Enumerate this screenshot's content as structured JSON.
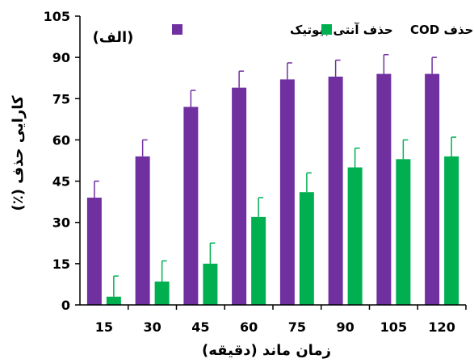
{
  "chart_data": {
    "type": "bar",
    "panel_label": "(الف)",
    "xlabel": "زمان ماند (دقیقه)",
    "ylabel": "کارایی حذف (٪)",
    "categories": [
      "15",
      "30",
      "45",
      "60",
      "75",
      "90",
      "105",
      "120"
    ],
    "ylim": [
      0,
      105
    ],
    "yticks": [
      0,
      15,
      30,
      45,
      60,
      75,
      90,
      105
    ],
    "grid": false,
    "legend_position": "top",
    "series": [
      {
        "name": "حذف آنتی بیوتیک",
        "color": "#7030a0",
        "values": [
          39,
          54,
          72,
          79,
          82,
          83,
          84,
          84
        ],
        "errors": [
          6,
          6,
          6,
          6,
          6,
          6,
          7,
          6
        ]
      },
      {
        "name": "حذف COD",
        "color": "#00b050",
        "values": [
          3,
          8.5,
          15,
          32,
          41,
          50,
          53,
          54
        ],
        "errors": [
          7.5,
          7.5,
          7.5,
          7,
          7,
          7,
          7,
          7
        ]
      }
    ]
  }
}
